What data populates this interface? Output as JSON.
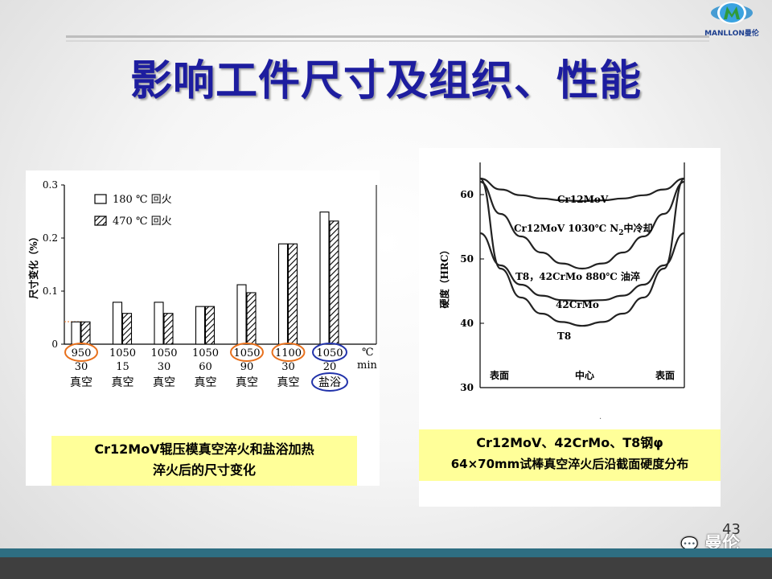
{
  "slide": {
    "title": "影响工件尺寸及组织、性能",
    "logo_text": "MANLLON曼伦",
    "page_number": "43",
    "watermark": "曼伦",
    "colors": {
      "title": "#1d1d9f",
      "caption_bg": "#ffff99",
      "bottom_bar": "#2e6e82",
      "orange_circle": "#e8701c",
      "blue_circle": "#2233aa"
    }
  },
  "left_chart": {
    "caption_line1": "Cr12MoV辊压模真空淬火和盐浴加热",
    "caption_line2": "淬火后的尺寸变化",
    "chart_data": {
      "type": "bar",
      "ylabel": "尺寸变化（%）",
      "ylim": [
        0,
        0.3
      ],
      "yticks": [
        "0",
        "0.1",
        "0.2",
        "0.3"
      ],
      "unit_temp": "℃",
      "unit_time": "min",
      "legend": [
        "180 ℃ 回火",
        "470 ℃ 回火"
      ],
      "categories": [
        {
          "temp": "950",
          "time": "30",
          "medium": "真空"
        },
        {
          "temp": "1050",
          "time": "15",
          "medium": "真空"
        },
        {
          "temp": "1050",
          "time": "30",
          "medium": "真空"
        },
        {
          "temp": "1050",
          "time": "60",
          "medium": "真空"
        },
        {
          "temp": "1050",
          "time": "90",
          "medium": "真空"
        },
        {
          "temp": "1100",
          "time": "30",
          "medium": "真空"
        },
        {
          "temp": "1050",
          "time": "20",
          "medium": "盐浴"
        }
      ],
      "series": [
        {
          "name": "180 ℃ 回火",
          "values": [
            0.042,
            0.079,
            0.079,
            0.071,
            0.112,
            0.189,
            0.249
          ]
        },
        {
          "name": "470 ℃ 回火",
          "values": [
            0.042,
            0.058,
            0.058,
            0.071,
            0.097,
            0.189,
            0.232
          ]
        }
      ],
      "circled_temps": {
        "orange": [
          0,
          4,
          5
        ],
        "blue": [
          6
        ]
      },
      "circled_medium_blue": [
        6
      ]
    }
  },
  "right_chart": {
    "caption_line1": "Cr12MoV、42CrMo、T8钢φ",
    "caption_line2": "64×70mm试棒真空淬火后沿截面硬度分布",
    "chart_data": {
      "type": "line",
      "ylabel": "硬度（HRC）",
      "ylim": [
        30,
        65
      ],
      "yticks": [
        "30",
        "40",
        "50",
        "60"
      ],
      "x_labels": [
        "表面",
        "中心",
        "表面"
      ],
      "x": [
        0,
        0.1,
        0.2,
        0.3,
        0.4,
        0.5,
        0.6,
        0.7,
        0.8,
        0.9,
        1.0
      ],
      "series": [
        {
          "name": "Cr12MoV",
          "values": [
            62.5,
            60.8,
            59.9,
            59.4,
            59.1,
            59.0,
            59.1,
            59.4,
            59.9,
            60.8,
            62.5
          ]
        },
        {
          "name": "Cr12MoV 1030℃ N2中冷却",
          "values": [
            62.0,
            57.0,
            53.5,
            51.0,
            49.3,
            48.5,
            49.3,
            51.0,
            53.5,
            57.0,
            62.0
          ]
        },
        {
          "name": "T8，42CrMo 880℃ 油淬",
          "values": [
            54.0,
            49.0,
            46.0,
            44.3,
            43.6,
            43.5,
            43.6,
            44.3,
            46.0,
            49.0,
            54.0
          ]
        },
        {
          "name": "T8",
          "values": [
            62.5,
            48.5,
            44.0,
            41.5,
            40.2,
            39.6,
            40.2,
            41.5,
            44.0,
            48.5,
            62.5
          ]
        }
      ],
      "labels": {
        "cr12": "Cr12MoV",
        "cr12_n2": "Cr12MoV  1030℃  N",
        "cr12_n2_sub": "2",
        "cr12_n2_tail": "中冷却",
        "t8_42": "T8，42CrMo  880℃ 油淬",
        "crmo42": "42CrMo",
        "t8": "T8"
      }
    }
  }
}
